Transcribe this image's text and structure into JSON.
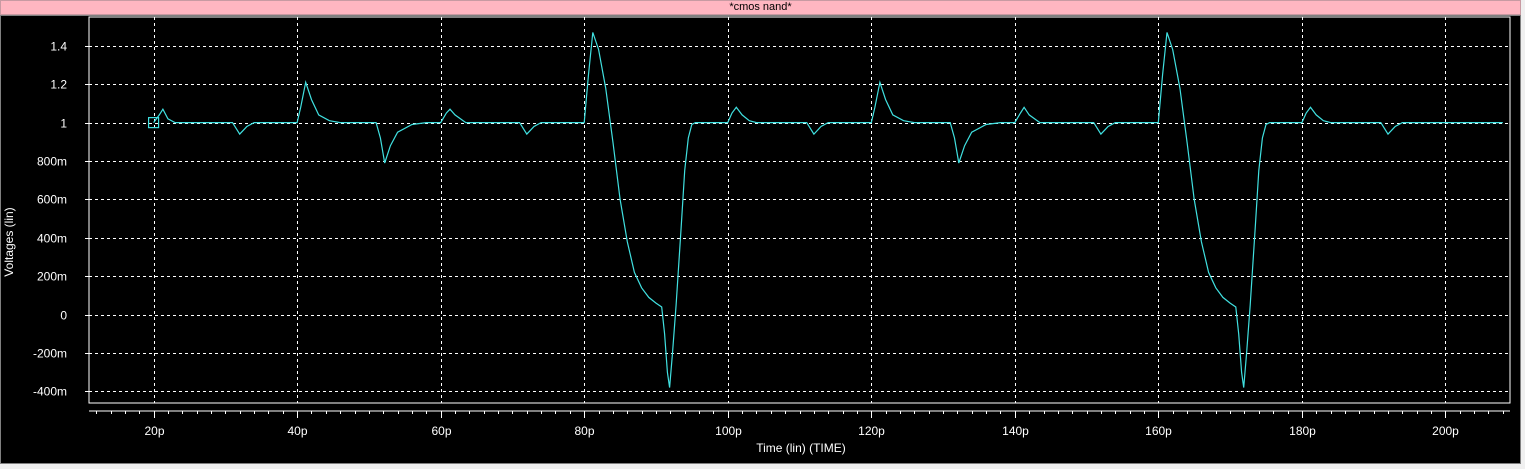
{
  "window": {
    "title": "*cmos nand*"
  },
  "colors": {
    "background": "#000000",
    "grid": "#ffffff",
    "trace": "#40e0e0",
    "title_bar": "#ffb6c1"
  },
  "chart_data": {
    "type": "line",
    "title": "*cmos nand*",
    "xlabel": "Time (lin) (TIME)",
    "ylabel": "Voltages (lin)",
    "xlim": [
      11,
      209
    ],
    "ylim": [
      -0.46,
      1.55
    ],
    "x_ticks": [
      {
        "value": 20,
        "label": "20p"
      },
      {
        "value": 40,
        "label": "40p"
      },
      {
        "value": 60,
        "label": "60p"
      },
      {
        "value": 80,
        "label": "80p"
      },
      {
        "value": 100,
        "label": "100p"
      },
      {
        "value": 120,
        "label": "120p"
      },
      {
        "value": 140,
        "label": "140p"
      },
      {
        "value": 160,
        "label": "160p"
      },
      {
        "value": 180,
        "label": "180p"
      },
      {
        "value": 200,
        "label": "200p"
      }
    ],
    "y_ticks": [
      {
        "value": 1.4,
        "label": "1.4"
      },
      {
        "value": 1.2,
        "label": "1.2"
      },
      {
        "value": 1.0,
        "label": "1"
      },
      {
        "value": 0.8,
        "label": "800m"
      },
      {
        "value": 0.6,
        "label": "600m"
      },
      {
        "value": 0.4,
        "label": "400m"
      },
      {
        "value": 0.2,
        "label": "200m"
      },
      {
        "value": 0.0,
        "label": "0"
      },
      {
        "value": -0.2,
        "label": "-200m"
      },
      {
        "value": -0.4,
        "label": "-400m"
      }
    ],
    "grid": true,
    "marker": {
      "x": 20,
      "y": 1.0,
      "shape": "square"
    },
    "series": [
      {
        "color": "#40e0e0",
        "points": [
          [
            20,
            1.0
          ],
          [
            20.8,
            1.04
          ],
          [
            21.3,
            1.07
          ],
          [
            22,
            1.02
          ],
          [
            23,
            1.0
          ],
          [
            31,
            1.0
          ],
          [
            32,
            0.94
          ],
          [
            33,
            0.98
          ],
          [
            34,
            1.0
          ],
          [
            40,
            1.0
          ],
          [
            40.5,
            1.08
          ],
          [
            41.2,
            1.21
          ],
          [
            42,
            1.12
          ],
          [
            43,
            1.04
          ],
          [
            44.5,
            1.01
          ],
          [
            46,
            1.0
          ],
          [
            51,
            1.0
          ],
          [
            51.6,
            0.92
          ],
          [
            52.2,
            0.79
          ],
          [
            53,
            0.88
          ],
          [
            54,
            0.95
          ],
          [
            56,
            0.99
          ],
          [
            58,
            1.0
          ],
          [
            60,
            1.0
          ],
          [
            60.8,
            1.05
          ],
          [
            61.3,
            1.07
          ],
          [
            62,
            1.04
          ],
          [
            63.5,
            1.0
          ],
          [
            71,
            1.0
          ],
          [
            72,
            0.94
          ],
          [
            73,
            0.98
          ],
          [
            74,
            1.0
          ],
          [
            80,
            1.0
          ],
          [
            80.6,
            1.25
          ],
          [
            81.2,
            1.47
          ],
          [
            82,
            1.38
          ],
          [
            83,
            1.18
          ],
          [
            84,
            0.9
          ],
          [
            85,
            0.6
          ],
          [
            86,
            0.38
          ],
          [
            87,
            0.22
          ],
          [
            88,
            0.14
          ],
          [
            89,
            0.09
          ],
          [
            90,
            0.06
          ],
          [
            90.8,
            0.04
          ],
          [
            91.2,
            -0.1
          ],
          [
            91.6,
            -0.3
          ],
          [
            91.9,
            -0.38
          ],
          [
            92.3,
            -0.2
          ],
          [
            92.8,
            0.05
          ],
          [
            93.5,
            0.45
          ],
          [
            94,
            0.75
          ],
          [
            94.5,
            0.92
          ],
          [
            95,
            0.99
          ],
          [
            95.5,
            1.0
          ],
          [
            100,
            1.0
          ],
          [
            100.6,
            1.05
          ],
          [
            101.2,
            1.08
          ],
          [
            102,
            1.04
          ],
          [
            103,
            1.01
          ],
          [
            104,
            1.0
          ],
          [
            111,
            1.0
          ],
          [
            112,
            0.94
          ],
          [
            113,
            0.98
          ],
          [
            114,
            1.0
          ],
          [
            120,
            1.0
          ],
          [
            120.5,
            1.08
          ],
          [
            121.2,
            1.21
          ],
          [
            122,
            1.12
          ],
          [
            123,
            1.04
          ],
          [
            124.5,
            1.01
          ],
          [
            126,
            1.0
          ],
          [
            131,
            1.0
          ],
          [
            131.6,
            0.92
          ],
          [
            132.2,
            0.79
          ],
          [
            133,
            0.88
          ],
          [
            134,
            0.95
          ],
          [
            136,
            0.99
          ],
          [
            138,
            1.0
          ],
          [
            140,
            1.0
          ],
          [
            140.8,
            1.05
          ],
          [
            141.3,
            1.08
          ],
          [
            142,
            1.04
          ],
          [
            143.5,
            1.0
          ],
          [
            151,
            1.0
          ],
          [
            152,
            0.94
          ],
          [
            153,
            0.98
          ],
          [
            154,
            1.0
          ],
          [
            160,
            1.0
          ],
          [
            160.6,
            1.25
          ],
          [
            161.2,
            1.47
          ],
          [
            162,
            1.38
          ],
          [
            163,
            1.18
          ],
          [
            164,
            0.9
          ],
          [
            165,
            0.6
          ],
          [
            166,
            0.38
          ],
          [
            167,
            0.22
          ],
          [
            168,
            0.14
          ],
          [
            169,
            0.09
          ],
          [
            170,
            0.06
          ],
          [
            170.8,
            0.04
          ],
          [
            171.2,
            -0.1
          ],
          [
            171.6,
            -0.3
          ],
          [
            171.9,
            -0.38
          ],
          [
            172.3,
            -0.2
          ],
          [
            172.8,
            0.05
          ],
          [
            173.5,
            0.45
          ],
          [
            174,
            0.75
          ],
          [
            174.5,
            0.92
          ],
          [
            175,
            0.99
          ],
          [
            175.5,
            1.0
          ],
          [
            180,
            1.0
          ],
          [
            180.6,
            1.05
          ],
          [
            181.2,
            1.08
          ],
          [
            182,
            1.04
          ],
          [
            183,
            1.01
          ],
          [
            184,
            1.0
          ],
          [
            191,
            1.0
          ],
          [
            192,
            0.94
          ],
          [
            193,
            0.98
          ],
          [
            194,
            1.0
          ],
          [
            208,
            1.0
          ]
        ]
      }
    ]
  }
}
